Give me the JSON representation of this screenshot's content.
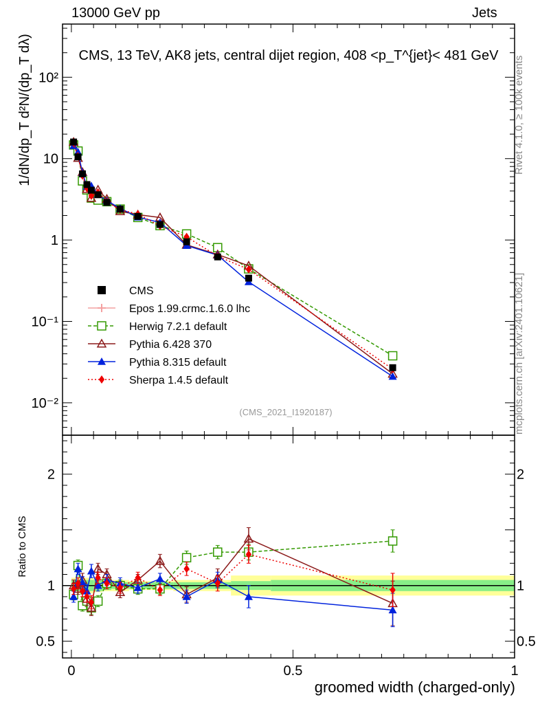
{
  "header": {
    "left": "13000 GeV pp",
    "right": "Jets"
  },
  "side_labels": {
    "rivet": "Rivet 4.1.0, ≥ 100k events",
    "mcplots": "mcplots.cern.ch [arXiv:2401.10621]"
  },
  "chart_data": {
    "type": "line",
    "title": "CMS, 13 TeV, AK8 jets, central dijet region, 408 <p_T^{jet}< 481 GeV",
    "xlabel": "groomed width (charged-only)",
    "ylabel": "1/dN/dp_T  d²N/(dp_T dλ)",
    "ratio_ylabel": "Ratio to CMS",
    "watermark": "(CMS_2021_I1920187)",
    "xlim": [
      -0.02,
      1.0
    ],
    "ylim_log": [
      0.004,
      450
    ],
    "ratio_ylim": [
      0.35,
      2.35
    ],
    "x_ticks": [
      {
        "v": 0,
        "label": "0"
      },
      {
        "v": 0.5,
        "label": "0.5"
      },
      {
        "v": 1,
        "label": "1"
      }
    ],
    "y_ticks": [
      {
        "v": 0.01,
        "label": "10⁻²"
      },
      {
        "v": 0.1,
        "label": "10⁻¹"
      },
      {
        "v": 1,
        "label": "1"
      },
      {
        "v": 10,
        "label": "10"
      },
      {
        "v": 100,
        "label": "10²"
      }
    ],
    "ratio_ticks": [
      {
        "v": 0.5,
        "label": "0.5"
      },
      {
        "v": 1,
        "label": "1"
      },
      {
        "v": 2,
        "label": "2"
      }
    ],
    "x": [
      0.005,
      0.015,
      0.025,
      0.035,
      0.045,
      0.06,
      0.08,
      0.11,
      0.15,
      0.2,
      0.26,
      0.33,
      0.4,
      0.725
    ],
    "data_series": {
      "name": "CMS",
      "values": [
        16.0,
        10.5,
        6.5,
        4.8,
        4.1,
        3.6,
        2.9,
        2.4,
        1.95,
        1.55,
        0.95,
        0.62,
        0.34,
        0.027
      ],
      "band_inner": [
        0.05,
        0.05,
        0.05,
        0.05,
        0.05,
        0.05,
        0.04,
        0.03,
        0.03,
        0.03,
        0.03,
        0.03,
        0.04,
        0.05
      ],
      "band_outer": [
        0.07,
        0.07,
        0.07,
        0.07,
        0.07,
        0.06,
        0.05,
        0.05,
        0.04,
        0.04,
        0.05,
        0.05,
        0.09,
        0.09
      ]
    },
    "bin_edges": [
      0,
      0.01,
      0.02,
      0.03,
      0.04,
      0.05,
      0.07,
      0.09,
      0.13,
      0.17,
      0.23,
      0.29,
      0.36,
      0.45,
      1.0
    ],
    "series": [
      {
        "name": "Epos 1.99.crmc.1.6.0 lhc",
        "color": "#f4a0a0",
        "marker": "cross",
        "dash": "",
        "ratio": [],
        "err": []
      },
      {
        "name": "Herwig 7.2.1 default",
        "color": "#339900",
        "marker": "square-open",
        "dash": "5,3",
        "ratio": [
          0.92,
          1.18,
          0.82,
          0.86,
          0.8,
          0.86,
          1.02,
          1.0,
          0.97,
          0.97,
          1.25,
          1.3,
          1.3,
          1.4
        ],
        "err": [
          0.05,
          0.05,
          0.05,
          0.05,
          0.06,
          0.05,
          0.05,
          0.05,
          0.05,
          0.05,
          0.06,
          0.06,
          0.07,
          0.1
        ]
      },
      {
        "name": "Pythia 6.428 370",
        "color": "#8b1a1a",
        "marker": "triangle-open",
        "dash": "",
        "ratio": [
          1.0,
          0.97,
          1.05,
          0.88,
          0.8,
          1.15,
          1.1,
          0.94,
          1.05,
          1.22,
          0.92,
          1.07,
          1.42,
          0.84
        ],
        "err": [
          0.05,
          0.05,
          0.06,
          0.06,
          0.07,
          0.05,
          0.05,
          0.05,
          0.05,
          0.06,
          0.07,
          0.08,
          0.1,
          0.2
        ]
      },
      {
        "name": "Pythia 8.315 default",
        "color": "#0022dd",
        "marker": "triangle",
        "dash": "",
        "ratio": [
          0.9,
          1.15,
          1.03,
          0.95,
          1.13,
          1.0,
          1.05,
          1.02,
          0.98,
          1.06,
          0.9,
          1.05,
          0.9,
          0.78
        ],
        "err": [
          0.05,
          0.05,
          0.05,
          0.06,
          0.06,
          0.05,
          0.05,
          0.05,
          0.05,
          0.05,
          0.06,
          0.07,
          0.1,
          0.15
        ]
      },
      {
        "name": "Sherpa 1.4.5 default",
        "color": "#ee0000",
        "marker": "diamond",
        "dash": "2,3",
        "ratio": [
          0.97,
          1.02,
          0.95,
          0.9,
          0.85,
          1.07,
          1.02,
          0.98,
          1.07,
          0.96,
          1.15,
          1.02,
          1.28,
          0.96
        ],
        "err": [
          0.05,
          0.05,
          0.05,
          0.05,
          0.06,
          0.05,
          0.05,
          0.05,
          0.05,
          0.05,
          0.06,
          0.07,
          0.08,
          0.15
        ]
      }
    ]
  }
}
